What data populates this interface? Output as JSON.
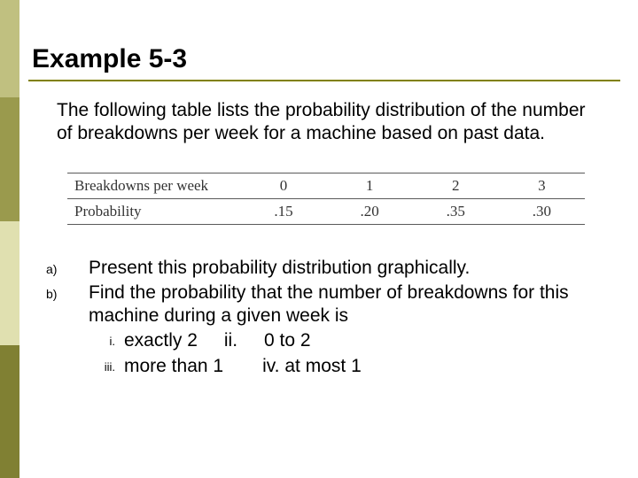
{
  "sidebar": {
    "blocks": [
      {
        "color": "#c0c080",
        "height": 110
      },
      {
        "color": "#9a9a4d",
        "height": 140
      },
      {
        "color": "#e0e0b0",
        "height": 140
      },
      {
        "color": "#808033",
        "height": 150
      }
    ]
  },
  "title": "Example 5-3",
  "intro": "The following table lists the probability distribution of the number of breakdowns per week for a machine based on past data.",
  "table": {
    "rows": [
      {
        "label": "Breakdowns per week",
        "values": [
          "0",
          "1",
          "2",
          "3"
        ]
      },
      {
        "label": "Probability",
        "values": [
          ".15",
          ".20",
          ".35",
          ".30"
        ]
      }
    ]
  },
  "questions": {
    "a": {
      "marker": "a)",
      "text": "Present this probability distribution graphically."
    },
    "b": {
      "marker": "b)",
      "text": "Find the probability that the number of breakdowns for this machine during a given week is",
      "subs": {
        "i": {
          "marker": "i.",
          "text": "exactly 2"
        },
        "ii": {
          "marker": "ii.",
          "text": "0 to 2"
        },
        "iii": {
          "marker": "iii.",
          "text": "more than 1"
        },
        "iv": {
          "marker": "iv.",
          "text": "at most 1"
        }
      }
    }
  }
}
